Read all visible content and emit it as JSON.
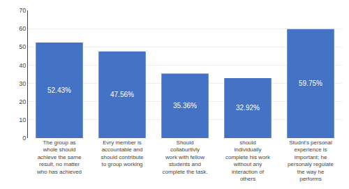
{
  "chart_data": {
    "type": "bar",
    "categories": [
      "The group as\nwhole should\nachieve the same\nresult, no matter\nwho has achieved",
      "Evry member is\naccountable and\nshould contribute\nto group working",
      "Should\ncollaburtivly\nwork with fellow\nstudents and\ncomplete the task.",
      "should\nindividually\ncomplete his work\nwithout any\ninteraction of\nothers",
      "Studnt's personal\nexperience is\nimportant; he\npersonaly regulate\nthe way he\nperforms"
    ],
    "values": [
      52.43,
      47.56,
      35.36,
      32.92,
      59.75
    ],
    "value_labels": [
      "52.43%",
      "47.56%",
      "35.36%",
      "32.92%",
      "59.75%"
    ],
    "data_labels": true,
    "color": "#4472C4",
    "ylim": [
      0,
      70
    ],
    "yticks": [
      0,
      10,
      20,
      30,
      40,
      50,
      60,
      70
    ],
    "grid": true
  }
}
